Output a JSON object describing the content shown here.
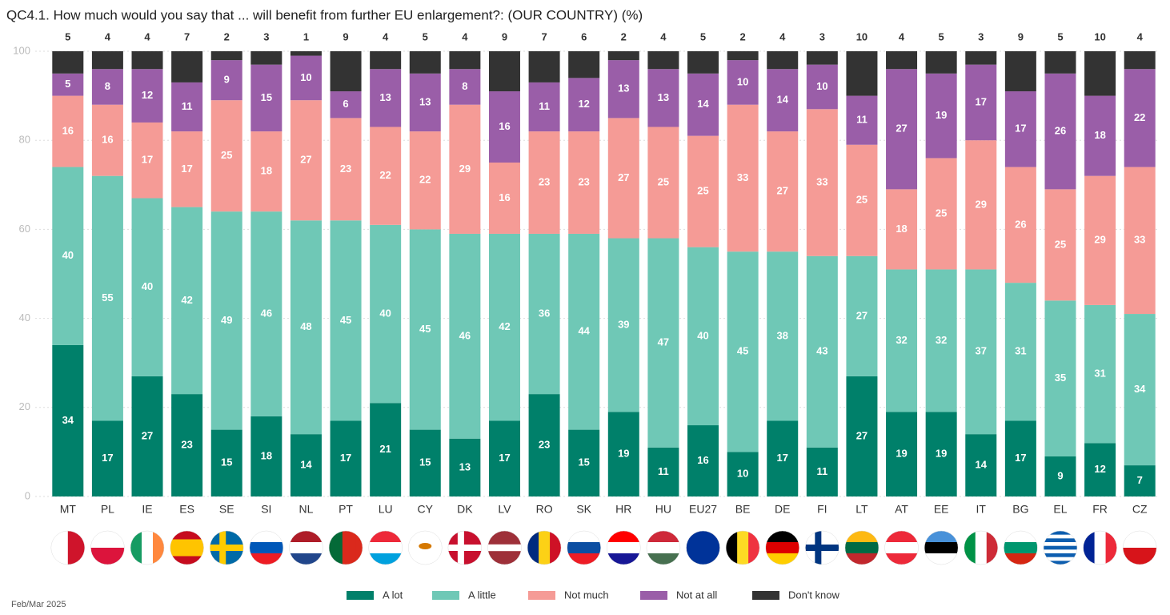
{
  "chart_data": {
    "type": "stacked_bar",
    "title": "QC4.1. How much would you say that ... will benefit from further EU enlargement?: (OUR COUNTRY) (%)",
    "footnote": "Feb/Mar 2025",
    "categories": [
      "MT",
      "PL",
      "IE",
      "ES",
      "SE",
      "SI",
      "NL",
      "PT",
      "LU",
      "CY",
      "DK",
      "LV",
      "RO",
      "SK",
      "HR",
      "HU",
      "EU27",
      "BE",
      "DE",
      "FI",
      "LT",
      "AT",
      "EE",
      "IT",
      "BG",
      "EL",
      "FR",
      "CZ"
    ],
    "series": [
      {
        "name": "A lot",
        "color": "#00806a",
        "values": [
          34,
          17,
          27,
          23,
          15,
          18,
          14,
          17,
          21,
          15,
          13,
          17,
          23,
          15,
          19,
          11,
          16,
          10,
          17,
          11,
          27,
          19,
          19,
          14,
          17,
          9,
          12,
          7
        ]
      },
      {
        "name": "A little",
        "color": "#6fc8b6",
        "values": [
          40,
          55,
          40,
          42,
          49,
          46,
          48,
          45,
          40,
          45,
          46,
          42,
          36,
          44,
          39,
          47,
          40,
          45,
          38,
          43,
          27,
          32,
          32,
          37,
          31,
          35,
          31,
          34
        ]
      },
      {
        "name": "Not much",
        "color": "#f59b96",
        "values": [
          16,
          16,
          17,
          17,
          25,
          18,
          27,
          23,
          22,
          22,
          29,
          16,
          23,
          23,
          27,
          25,
          25,
          33,
          27,
          33,
          25,
          18,
          25,
          29,
          26,
          25,
          29,
          33
        ]
      },
      {
        "name": "Not at all",
        "color": "#9a5ea8",
        "values": [
          5,
          8,
          12,
          11,
          9,
          15,
          10,
          6,
          13,
          13,
          8,
          16,
          11,
          12,
          13,
          13,
          14,
          10,
          14,
          10,
          11,
          27,
          19,
          17,
          17,
          26,
          18,
          22
        ]
      },
      {
        "name": "Don't know",
        "color": "#333333",
        "values": [
          5,
          4,
          4,
          7,
          2,
          3,
          1,
          9,
          4,
          5,
          4,
          9,
          7,
          6,
          2,
          4,
          5,
          2,
          4,
          3,
          10,
          4,
          5,
          3,
          9,
          5,
          10,
          4
        ]
      }
    ],
    "ylim": [
      0,
      100
    ],
    "yticks": [
      0,
      20,
      40,
      60,
      80,
      100
    ],
    "grid": true,
    "legend": "bottom"
  }
}
